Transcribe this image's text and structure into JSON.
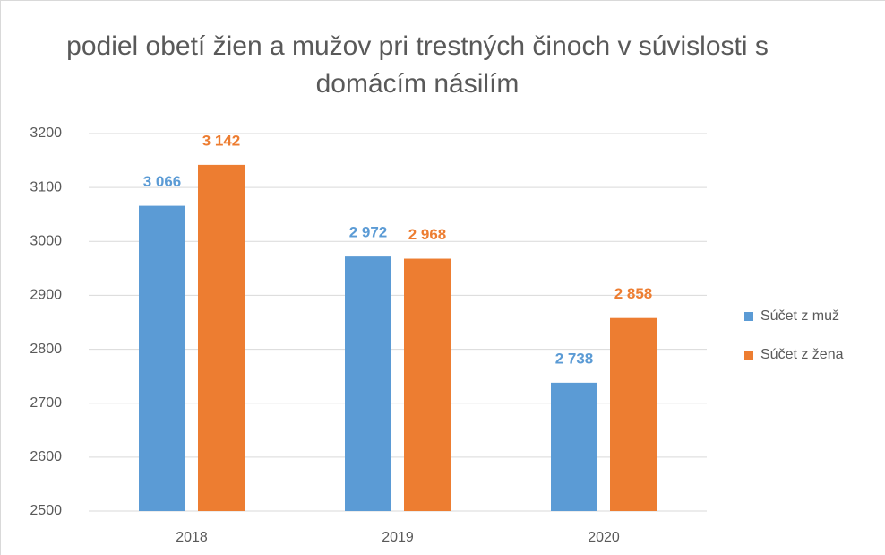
{
  "chart_data": {
    "type": "bar",
    "title": "podiel obetí žien a mužov pri trestných činoch v súvislosti s domácím násilím",
    "categories": [
      "2018",
      "2019",
      "2020"
    ],
    "series": [
      {
        "name": "Súčet z muž",
        "color": "#5b9bd5",
        "values": [
          3066,
          2972,
          2738
        ],
        "value_labels": [
          "3 066",
          "2 972",
          "2 738"
        ]
      },
      {
        "name": "Súčet z žena",
        "color": "#ed7d31",
        "values": [
          3142,
          2968,
          2858
        ],
        "value_labels": [
          "3 142",
          "2 968",
          "2 858"
        ]
      }
    ],
    "ylim": [
      2500,
      3200
    ],
    "yticks": [
      2500,
      2600,
      2700,
      2800,
      2900,
      3000,
      3100,
      3200
    ],
    "grid": true,
    "legend": "right"
  }
}
